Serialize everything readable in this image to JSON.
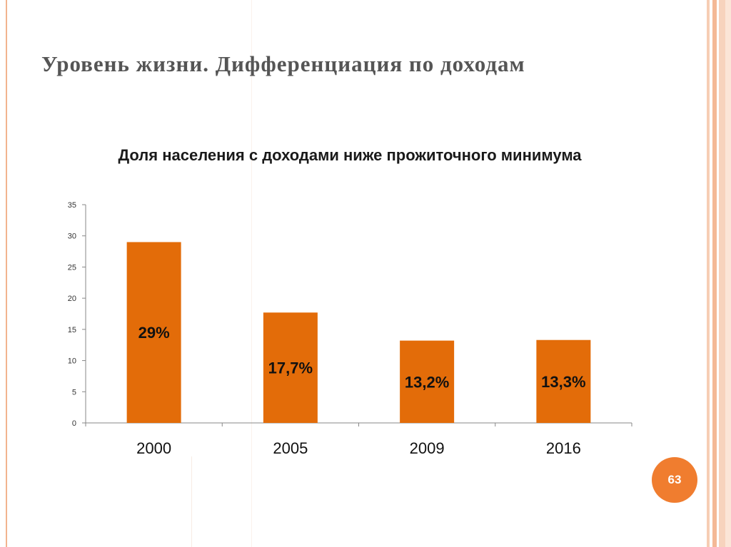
{
  "slide": {
    "title": "Уровень жизни. Дифференциация по доходам",
    "page_number": "63"
  },
  "colors": {
    "bar": "#e36c09",
    "accent": "#f07d2f",
    "title_text": "#555555"
  },
  "chart_data": {
    "type": "bar",
    "title": "Доля населения с доходами ниже прожиточного минимума",
    "xlabel": "",
    "ylabel": "",
    "categories": [
      "2000",
      "2005",
      "2009",
      "2016"
    ],
    "values": [
      29,
      17.7,
      13.2,
      13.3
    ],
    "data_labels": [
      "29%",
      "17,7%",
      "13,2%",
      "13,3%"
    ],
    "ylim": [
      0,
      35
    ],
    "yticks": [
      0,
      5,
      10,
      15,
      20,
      25,
      30,
      35
    ],
    "grid": false,
    "legend": "none"
  }
}
